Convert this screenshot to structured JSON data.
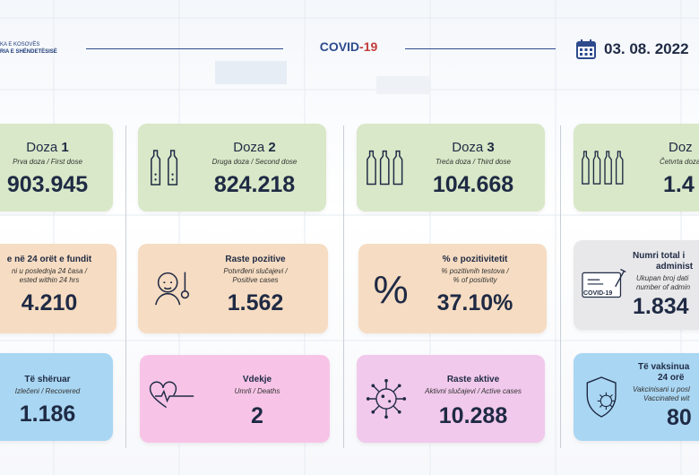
{
  "header": {
    "brand_line1": "KA E KOSOVËS",
    "brand_line2": "RIA E SHËNDETËSISË",
    "title_main": "COVID",
    "title_num": "-19",
    "date": "03. 08. 2022"
  },
  "row1": [
    {
      "title_a": "Doza ",
      "title_b": "1",
      "sub": "Prva doza / First dose",
      "value": "903.945"
    },
    {
      "title_a": "Doza ",
      "title_b": "2",
      "sub": "Druga doza / Second dose",
      "value": "824.218"
    },
    {
      "title_a": "Doza ",
      "title_b": "3",
      "sub": "Treća doza / Third dose",
      "value": "104.668"
    },
    {
      "title_a": "Doz",
      "title_b": "",
      "sub": "Četvrta doza / F",
      "value": "1.4"
    }
  ],
  "row2": [
    {
      "title": "e në 24 orët e fundit",
      "sub1": "ni u poslednja 24 časa /",
      "sub2": "ested within 24 hrs",
      "value": "4.210"
    },
    {
      "title": "Raste pozitive",
      "sub1": "Potvrđeni slučajevi /",
      "sub2": "Positive cases",
      "value": "1.562"
    },
    {
      "title": "% e pozitivitetit",
      "sub1": "% pozitivnih testova /",
      "sub2": "% of positivity",
      "value": "37.10%",
      "icon_text": "%"
    },
    {
      "title1": "Numri total i",
      "title2": "administ",
      "sub1": "Ukupan broj dati",
      "sub2": "number of admin",
      "value": "1.834",
      "cert_label": "COVID-19"
    }
  ],
  "row3": [
    {
      "title": "Të shëruar",
      "sub": "Izlečeni / Recovered",
      "value": "1.186"
    },
    {
      "title": "Vdekje",
      "sub": "Umrli / Deaths",
      "value": "2"
    },
    {
      "title": "Raste aktive",
      "sub": "Aktivni slučajevi / Active cases",
      "value": "10.288"
    },
    {
      "title1": "Të vaksinua",
      "title2": "24 orë",
      "sub1": "Vakcinisani u posl",
      "sub2": "Vaccinated wit",
      "value": "80"
    }
  ],
  "colors": {
    "dose": "#d8e8c8",
    "tests": "#f6dcc2",
    "admin": "#e8e8ea",
    "recovered": "#a9d6f2",
    "deaths": "#f7c4e7",
    "active": "#f1c9ec",
    "vaccinated": "#a9d6f2",
    "accent": "#2c4a8c",
    "covid_red": "#c23a3a"
  },
  "icons": [
    "calendar-icon",
    "vials-icon",
    "patient-thermometer-icon",
    "percent-icon",
    "certificate-syringe-icon",
    "heartbeat-icon",
    "virus-icon",
    "shield-virus-icon"
  ]
}
